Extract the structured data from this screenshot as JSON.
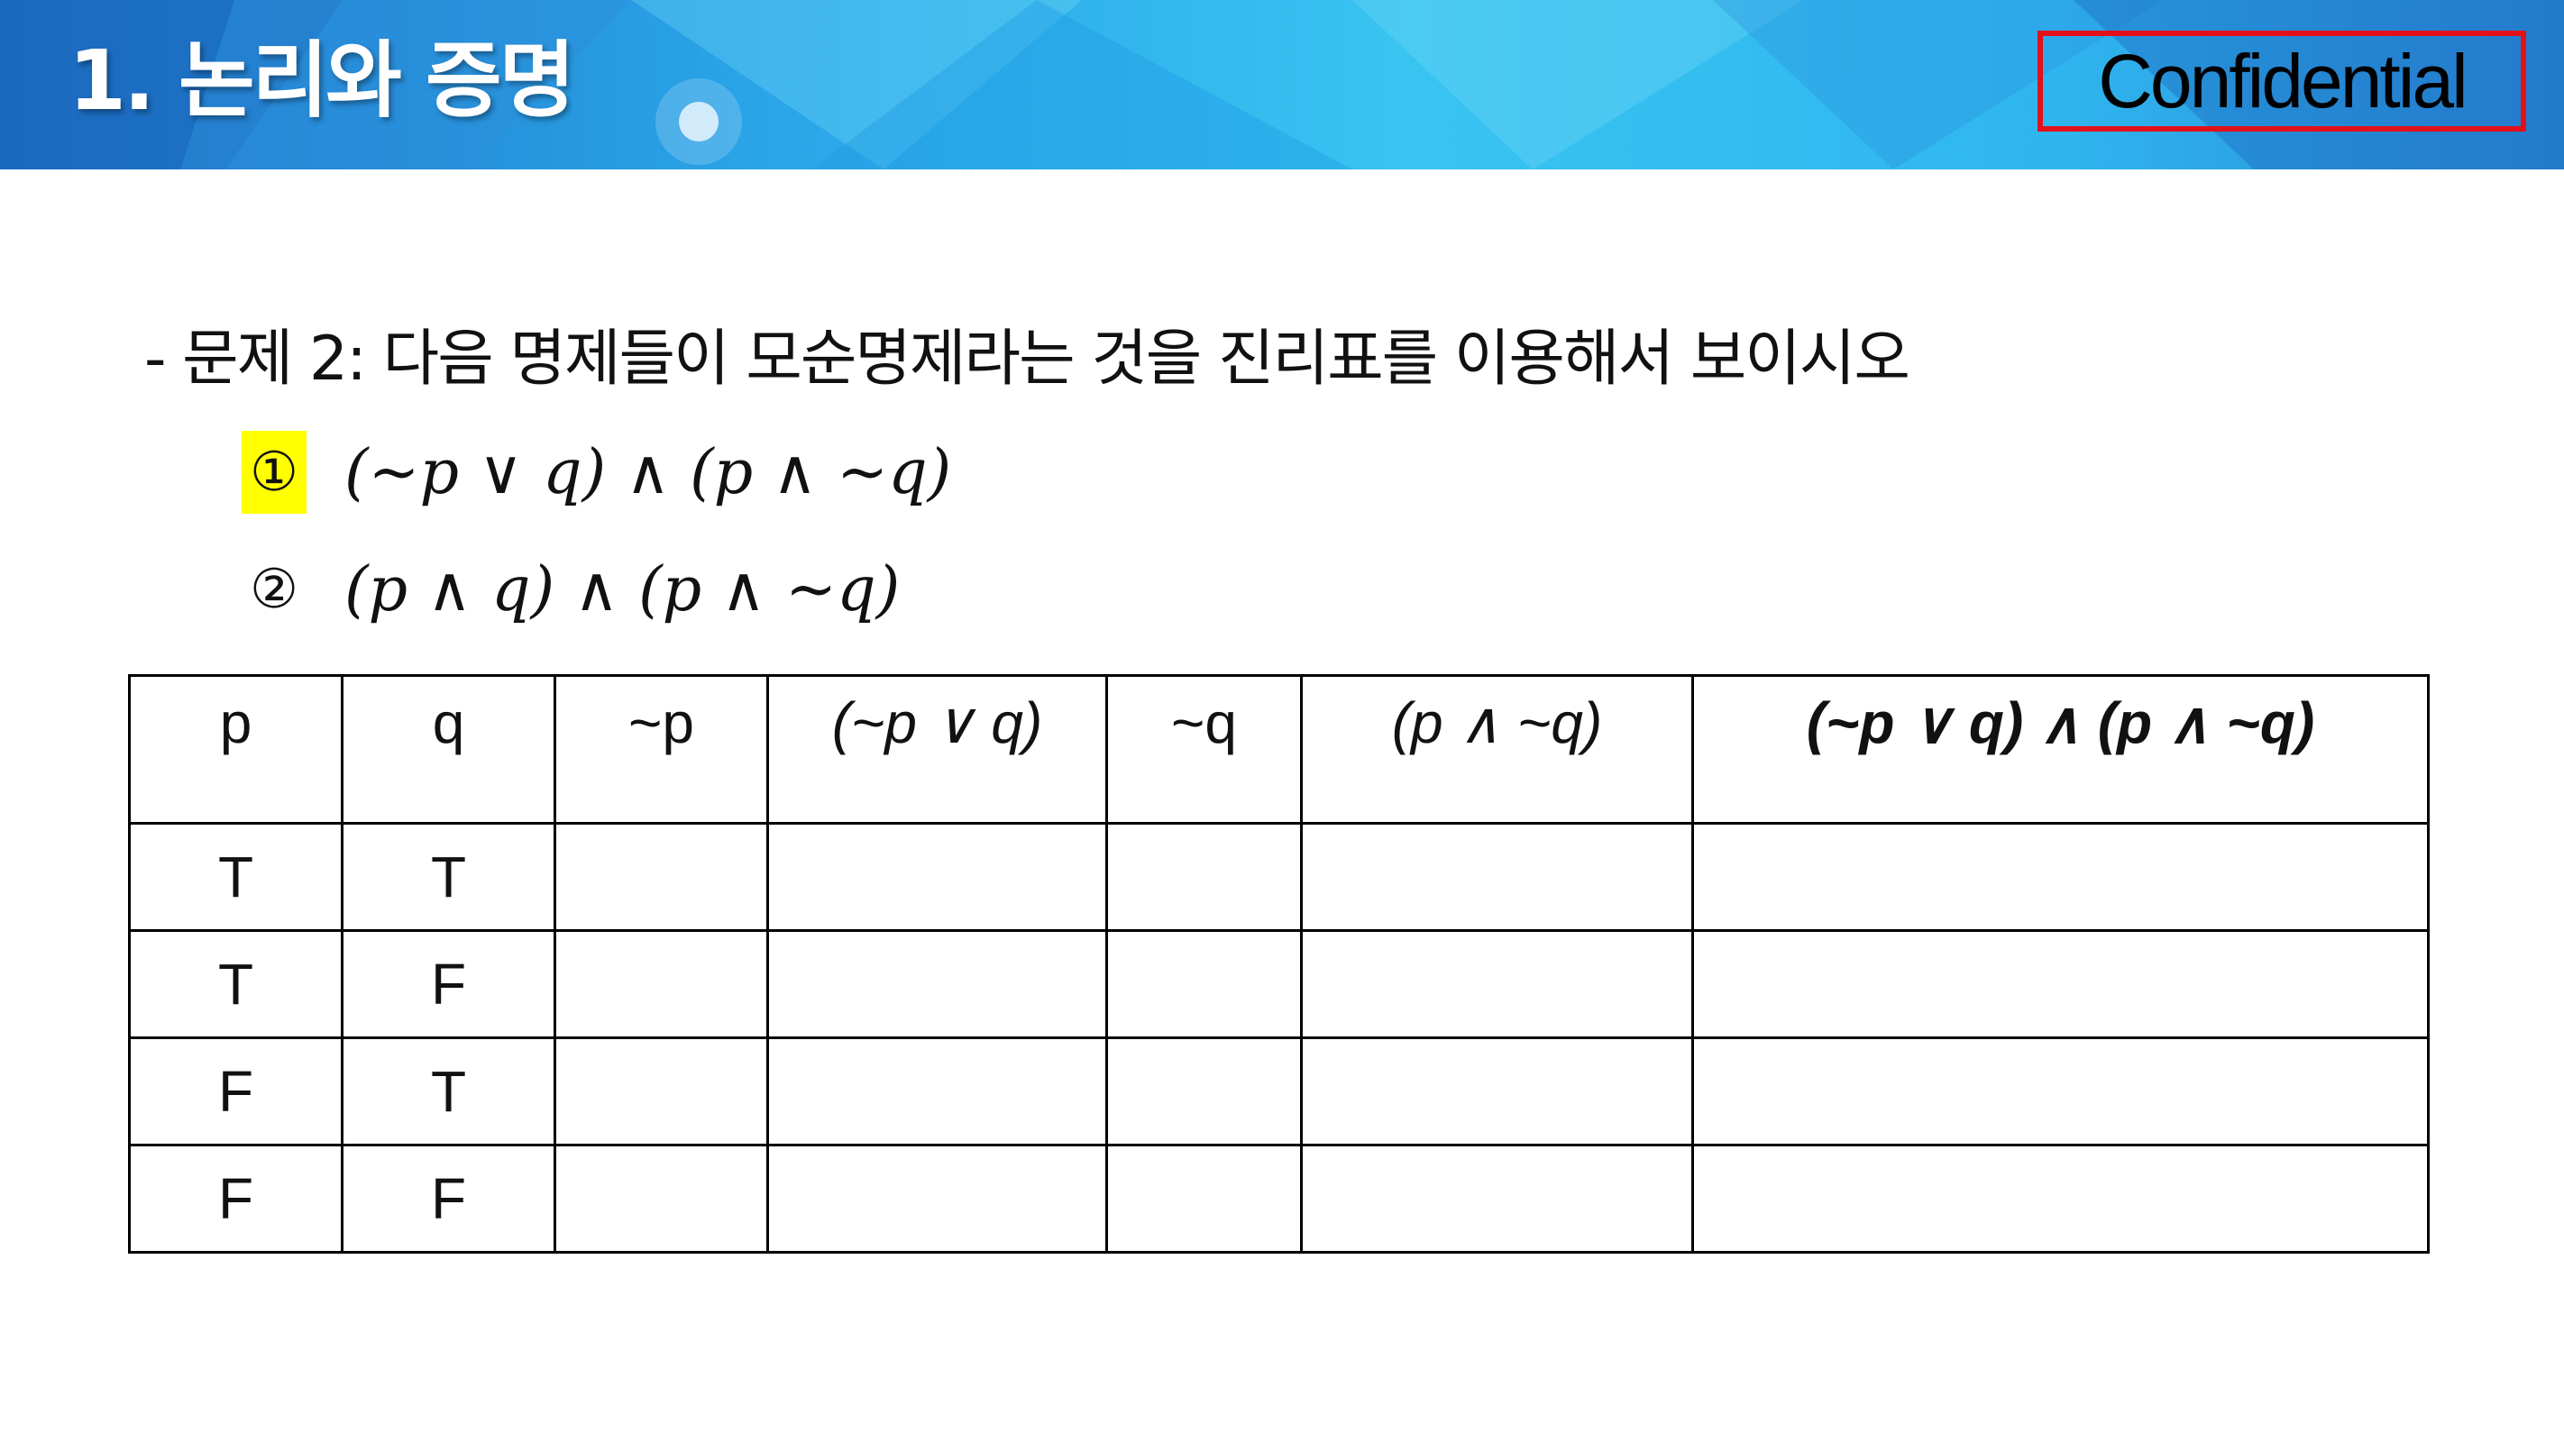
{
  "header": {
    "title": "1. 논리와 증명",
    "confidential_label": "Confidential",
    "colors": {
      "banner_dark": "#1e73c9",
      "banner_light": "#38c4f1",
      "confidential_border": "#e3101a"
    }
  },
  "problem": {
    "text": "- 문제 2: 다음 명제들이 모순명제라는 것을 진리표를 이용해서 보이시오",
    "items": [
      {
        "number": "①",
        "expression": "(~p ∨ q) ∧ (p ∧ ~q)",
        "highlighted": true,
        "highlight_color": "#ffff00"
      },
      {
        "number": "②",
        "expression": "(p ∧ q) ∧ (p ∧ ~q)",
        "highlighted": false
      }
    ]
  },
  "truth_table": {
    "headers": [
      "p",
      "q",
      "~p",
      "(~p ∨ q)",
      "~q",
      "(p ∧ ~q)",
      "(~p ∨ q) ∧ (p ∧ ~q)"
    ],
    "rows": [
      [
        "T",
        "T",
        "",
        "",
        "",
        "",
        ""
      ],
      [
        "T",
        "F",
        "",
        "",
        "",
        "",
        ""
      ],
      [
        "F",
        "T",
        "",
        "",
        "",
        "",
        ""
      ],
      [
        "F",
        "F",
        "",
        "",
        "",
        "",
        ""
      ]
    ]
  }
}
